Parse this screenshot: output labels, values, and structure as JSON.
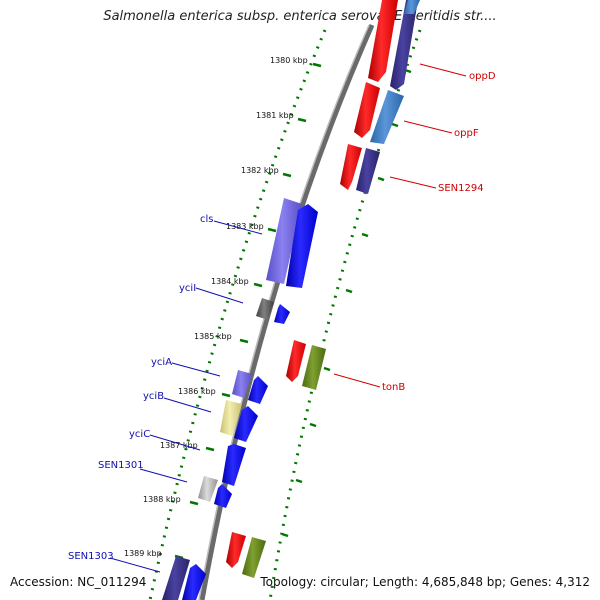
{
  "title": "Salmonella enterica subsp. enterica serovar Enteritidis str....",
  "footer": {
    "accession": "Accession: NC_011294",
    "summary": "Topology: circular; Length: 4,685,848 bp; Genes: 4,312"
  },
  "scale": {
    "ticks": [
      "1380 kbp",
      "1381 kbp",
      "1382 kbp",
      "1383 kbp",
      "1384 kbp",
      "1385 kbp",
      "1386 kbp",
      "1387 kbp",
      "1388 kbp",
      "1389 kbp"
    ]
  },
  "genes_left": [
    "cls",
    "yciI",
    "yciA",
    "yciB",
    "yciC",
    "SEN1301",
    "SEN1303"
  ],
  "genes_right": [
    "oppD",
    "oppF",
    "SEN1294",
    "tonB"
  ],
  "colors": {
    "forward_cds": "#0000ff",
    "reverse_cds": "#ff0000",
    "left_label": "#1010b0",
    "right_label": "#d00000",
    "axis": "#777777",
    "dotted_track": "#007700"
  }
}
